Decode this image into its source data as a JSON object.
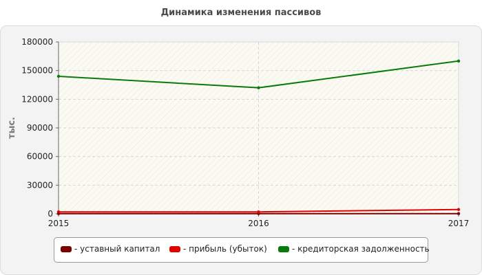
{
  "title": "Динамика изменения пассивов",
  "chart_data": {
    "type": "line",
    "title": "Динамика изменения пассивов",
    "ylabel": "тыс.",
    "x": [
      "2015",
      "2016",
      "2017"
    ],
    "ylim": [
      0,
      180000
    ],
    "yticks": [
      "0",
      "30000",
      "60000",
      "90000",
      "120000",
      "150000",
      "180000"
    ],
    "ytick_values": [
      0,
      30000,
      60000,
      90000,
      120000,
      150000,
      180000
    ],
    "grid": true,
    "legend_position": "bottom",
    "series": [
      {
        "name": "- уставный капитал",
        "color": "#7a0000",
        "values": [
          200,
          200,
          200
        ]
      },
      {
        "name": "- прибыль (убыток)",
        "color": "#e00000",
        "values": [
          2000,
          2000,
          4500
        ]
      },
      {
        "name": "- кредиторская задолженность",
        "color": "#0a7a0a",
        "values": [
          144000,
          132000,
          160000
        ]
      }
    ]
  }
}
